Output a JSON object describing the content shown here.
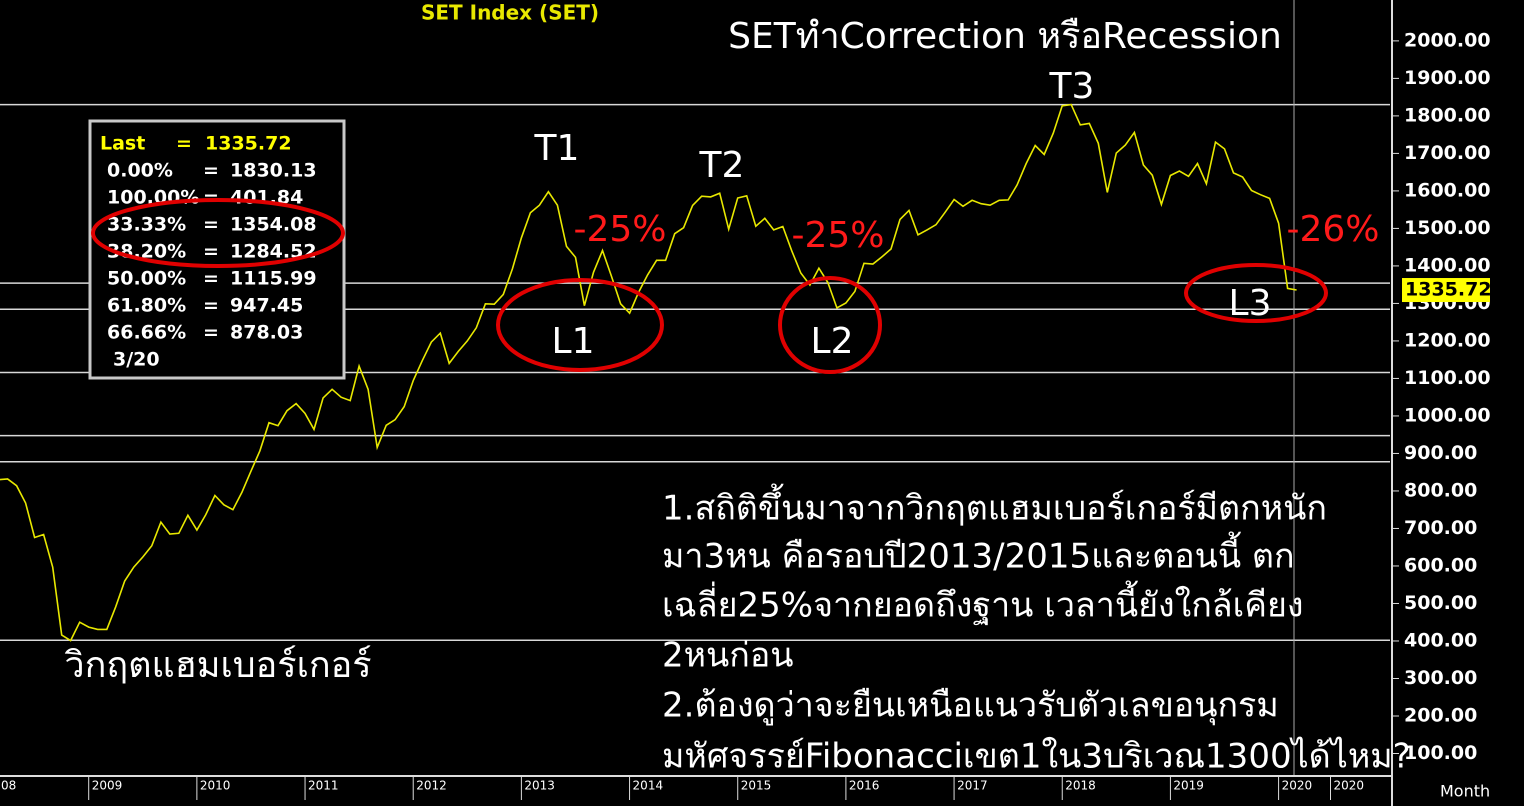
{
  "chart_data": {
    "type": "line",
    "title": "SET Index (SET)",
    "subtitle": "SETทำCorrection หรือRecession",
    "x_unit_label": "Month",
    "xlim": [
      2008.18,
      2021.03
    ],
    "xticks": [
      {
        "value": 2008,
        "label": "08"
      },
      2009,
      2010,
      2011,
      2012,
      2013,
      2014,
      2015,
      2016,
      2017,
      2018,
      2019,
      2020,
      {
        "value": 2020.48,
        "label": "2020"
      }
    ],
    "ylim": [
      40,
      2109
    ],
    "yticks": [
      {
        "value": 100,
        "label": "100.00"
      },
      {
        "value": 200,
        "label": "200.00"
      },
      {
        "value": 300,
        "label": "300.00"
      },
      {
        "value": 400,
        "label": "400.00"
      },
      {
        "value": 500,
        "label": "500.00"
      },
      {
        "value": 600,
        "label": "600.00"
      },
      {
        "value": 700,
        "label": "700.00"
      },
      {
        "value": 800,
        "label": "800.00"
      },
      {
        "value": 900,
        "label": "900.00"
      },
      {
        "value": 1000,
        "label": "1000.00"
      },
      {
        "value": 1100,
        "label": "1100.00"
      },
      {
        "value": 1200,
        "label": "1200.00"
      },
      {
        "value": 1300,
        "label": "1300.00"
      },
      {
        "value": 1400,
        "label": "1400.00"
      },
      {
        "value": 1500,
        "label": "1500.00"
      },
      {
        "value": 1600,
        "label": "1600.00"
      },
      {
        "value": 1700,
        "label": "1700.00"
      },
      {
        "value": 1800,
        "label": "1800.00"
      },
      {
        "value": 1900,
        "label": "1900.00"
      },
      {
        "value": 2000,
        "label": "2000.00"
      }
    ],
    "x": [
      2008.167,
      2008.25,
      2008.333,
      2008.417,
      2008.5,
      2008.583,
      2008.667,
      2008.75,
      2008.833,
      2008.917,
      2009,
      2009.083,
      2009.167,
      2009.25,
      2009.333,
      2009.417,
      2009.5,
      2009.583,
      2009.667,
      2009.75,
      2009.833,
      2009.917,
      2010,
      2010.083,
      2010.167,
      2010.25,
      2010.333,
      2010.417,
      2010.5,
      2010.583,
      2010.667,
      2010.75,
      2010.833,
      2010.917,
      2011,
      2011.083,
      2011.167,
      2011.25,
      2011.333,
      2011.417,
      2011.5,
      2011.583,
      2011.667,
      2011.75,
      2011.833,
      2011.917,
      2012,
      2012.083,
      2012.167,
      2012.25,
      2012.333,
      2012.417,
      2012.5,
      2012.583,
      2012.667,
      2012.75,
      2012.833,
      2012.917,
      2013,
      2013.083,
      2013.167,
      2013.25,
      2013.333,
      2013.417,
      2013.5,
      2013.583,
      2013.667,
      2013.75,
      2013.833,
      2013.917,
      2014,
      2014.083,
      2014.167,
      2014.25,
      2014.333,
      2014.417,
      2014.5,
      2014.583,
      2014.667,
      2014.75,
      2014.833,
      2014.917,
      2015,
      2015.083,
      2015.167,
      2015.25,
      2015.333,
      2015.417,
      2015.5,
      2015.583,
      2015.667,
      2015.75,
      2015.833,
      2015.917,
      2016,
      2016.083,
      2016.167,
      2016.25,
      2016.333,
      2016.417,
      2016.5,
      2016.583,
      2016.667,
      2016.75,
      2016.833,
      2016.917,
      2017,
      2017.083,
      2017.167,
      2017.25,
      2017.333,
      2017.417,
      2017.5,
      2017.583,
      2017.667,
      2017.75,
      2017.833,
      2017.917,
      2018,
      2018.083,
      2018.167,
      2018.25,
      2018.333,
      2018.417,
      2018.5,
      2018.583,
      2018.667,
      2018.75,
      2018.833,
      2018.917,
      2019,
      2019.083,
      2019.167,
      2019.25,
      2019.333,
      2019.417,
      2019.5,
      2019.583,
      2019.667,
      2019.75,
      2019.833,
      2019.917,
      2020,
      2020.083,
      2020.167
    ],
    "series": [
      {
        "name": "SET",
        "color": "#e8e800",
        "values": [
          830,
          832,
          814,
          768,
          676,
          684,
          597,
          416,
          401,
          450,
          437,
          431,
          431,
          491,
          560,
          597,
          624,
          654,
          717,
          685,
          687,
          735,
          696,
          737,
          788,
          763,
          750,
          797,
          853,
          907,
          982,
          974,
          1014,
          1033,
          1007,
          964,
          1048,
          1071,
          1050,
          1041,
          1133,
          1071,
          916,
          975,
          990,
          1025,
          1094,
          1147,
          1197,
          1221,
          1140,
          1172,
          1200,
          1235,
          1299,
          1298,
          1324,
          1392,
          1475,
          1542,
          1562,
          1598,
          1562,
          1452,
          1423,
          1294,
          1383,
          1441,
          1372,
          1299,
          1274,
          1329,
          1376,
          1415,
          1415,
          1486,
          1502,
          1561,
          1586,
          1584,
          1594,
          1498,
          1581,
          1587,
          1506,
          1527,
          1496,
          1505,
          1440,
          1381,
          1349,
          1394,
          1356,
          1288,
          1301,
          1332,
          1407,
          1405,
          1424,
          1445,
          1524,
          1548,
          1483,
          1496,
          1510,
          1543,
          1577,
          1559,
          1575,
          1566,
          1562,
          1575,
          1576,
          1616,
          1673,
          1721,
          1697,
          1754,
          1827,
          1830,
          1776,
          1780,
          1727,
          1596,
          1701,
          1722,
          1756,
          1669,
          1642,
          1564,
          1641,
          1653,
          1639,
          1673,
          1619,
          1730,
          1712,
          1648,
          1637,
          1601,
          1590,
          1580,
          1514,
          1340,
          1335.72
        ]
      }
    ],
    "fibonacci": {
      "last_label": "Last",
      "separator": "=",
      "last": 1335.72,
      "levels": [
        {
          "label": "0.00%",
          "value": 1830.13
        },
        {
          "label": "100.00%",
          "value": 401.84
        },
        {
          "label": "33.33%",
          "value": 1354.08
        },
        {
          "label": "38.20%",
          "value": 1284.52
        },
        {
          "label": "50.00%",
          "value": 1115.99
        },
        {
          "label": "61.80%",
          "value": 947.45
        },
        {
          "label": "66.66%",
          "value": 878.03
        }
      ],
      "date": "3/20"
    },
    "annotations": [
      "T1",
      "T2",
      "T3",
      "L1",
      "L2",
      "L3",
      "-25%",
      "-25%",
      "-26%",
      "วิกฤตแฮมเบอร์เกอร์"
    ],
    "note_lines": [
      "1.สถิติขึ้นมาจากวิกฤตแฮมเบอร์เกอร์มีตกหนัก",
      "มา3หน คือรอบปี2013/2015และตอนนี้ ตก",
      "เฉลี่ย25%จากยอดถึงฐาน เวลานี้ยังใกล้เคียง",
      "2หนก่อน",
      "2.ต้องดูว่าจะยืนเหนือแนวรับตัวเลขอนุกรม",
      "มหัศจรรย์Fibonacciเขต1ใน3บริเวณ1300ได้ไหม?"
    ]
  }
}
